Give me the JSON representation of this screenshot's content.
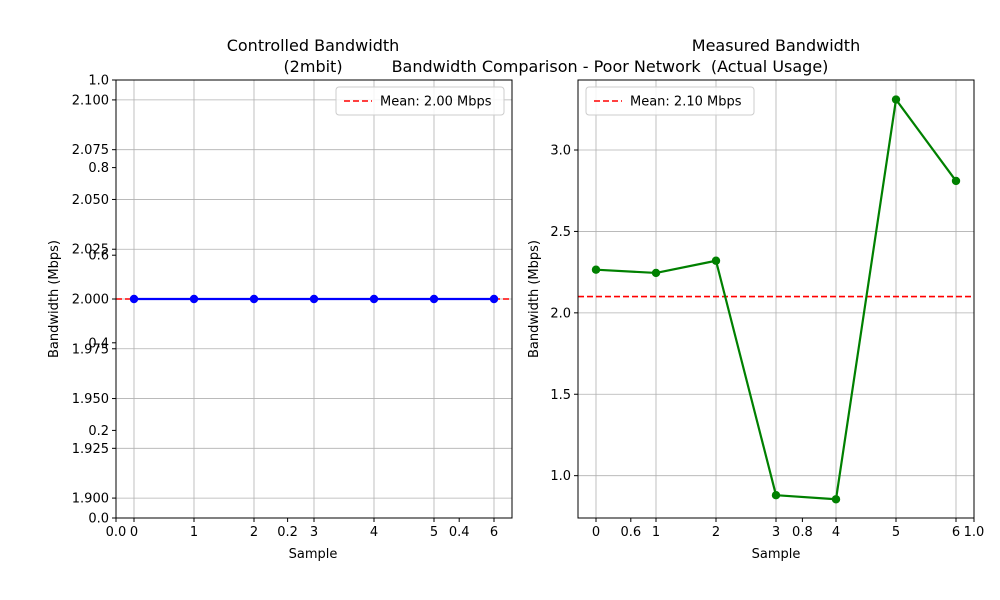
{
  "figure": {
    "suptitle": "Bandwidth Comparison - Poor Network"
  },
  "chart_data": [
    {
      "type": "line",
      "title_lines": [
        "Controlled Bandwidth",
        "(2mbit)"
      ],
      "xlabel": "Sample",
      "ylabel": "Bandwidth (Mbps)",
      "x": [
        0,
        1,
        2,
        3,
        4,
        5,
        6
      ],
      "series": [
        {
          "values": [
            2.0,
            2.0,
            2.0,
            2.0,
            2.0,
            2.0,
            2.0
          ],
          "color": "#0000ff",
          "marker": "circle"
        }
      ],
      "mean": {
        "value": 2.0,
        "label": "Mean: 2.00 Mbps",
        "color": "#ff0000",
        "style": "dashed"
      },
      "xlim": [
        -0.3,
        6.3
      ],
      "ylim": [
        1.89,
        2.11
      ],
      "xticks": [
        0,
        1,
        2,
        3,
        4,
        5,
        6
      ],
      "yticks": [
        1.9,
        1.925,
        1.95,
        1.975,
        2.0,
        2.025,
        2.05,
        2.075,
        2.1
      ],
      "ytick_labels": [
        "1.900",
        "1.925",
        "1.950",
        "1.975",
        "2.000",
        "2.025",
        "2.050",
        "2.075",
        "2.100"
      ],
      "grid": true,
      "legend_position": "upper right"
    },
    {
      "type": "line",
      "title_lines": [
        "Measured Bandwidth",
        "(Actual Usage)"
      ],
      "xlabel": "Sample",
      "ylabel": "Bandwidth (Mbps)",
      "x": [
        0,
        1,
        2,
        3,
        4,
        5,
        6
      ],
      "series": [
        {
          "values": [
            2.265,
            2.245,
            2.32,
            0.88,
            0.855,
            3.31,
            2.81
          ],
          "color": "#008000",
          "marker": "circle"
        }
      ],
      "mean": {
        "value": 2.1,
        "label": "Mean: 2.10 Mbps",
        "color": "#ff0000",
        "style": "dashed"
      },
      "xlim": [
        -0.3,
        6.3
      ],
      "ylim": [
        0.74,
        3.43
      ],
      "xticks": [
        0,
        1,
        2,
        3,
        4,
        5,
        6
      ],
      "yticks": [
        1.0,
        1.5,
        2.0,
        2.5,
        3.0
      ],
      "ytick_labels": [
        "1.0",
        "1.5",
        "2.0",
        "2.5",
        "3.0"
      ],
      "grid": true,
      "legend_position": "upper left"
    }
  ],
  "background_axes": {
    "xticks": [
      0.0,
      0.2,
      0.4,
      0.6,
      0.8,
      1.0
    ],
    "xtick_labels": [
      "0.0",
      "0.2",
      "0.4",
      "0.6",
      "0.8",
      "1.0"
    ],
    "yticks": [
      0.0,
      0.2,
      0.4,
      0.6,
      0.8,
      1.0
    ],
    "ytick_labels": [
      "0.0",
      "0.2",
      "0.4",
      "0.6",
      "0.8",
      "1.0"
    ],
    "xlim": [
      0,
      1
    ],
    "ylim": [
      0,
      1
    ]
  }
}
